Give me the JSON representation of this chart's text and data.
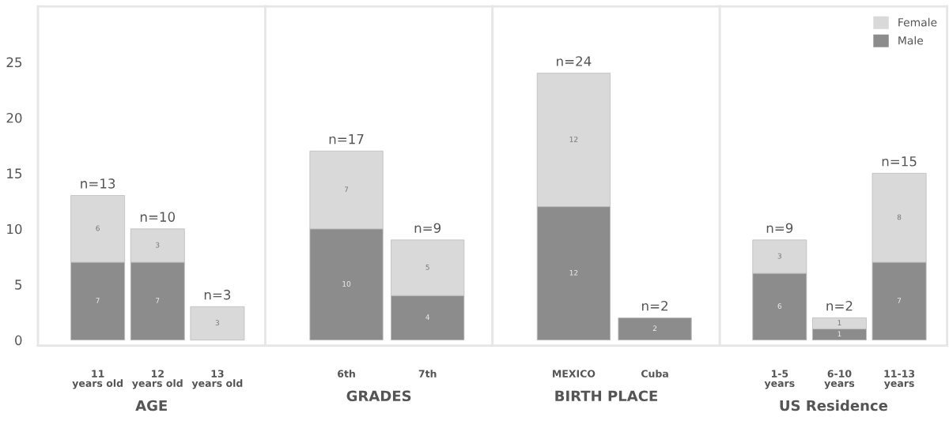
{
  "chart_data": [
    {
      "type": "bar",
      "stacked": true,
      "xlabel": "AGE",
      "categories": [
        "11\nyears old",
        "12\nyears old",
        "13\nyears old"
      ],
      "ylim": [
        -0.5,
        30
      ],
      "yticks": [
        0,
        5,
        10,
        15,
        20,
        25
      ],
      "data_labels": true,
      "totals": [
        "n=13",
        "n=10",
        "n=3"
      ],
      "series": [
        {
          "color": "#8c8c8c",
          "values": [
            7,
            7,
            null
          ]
        },
        {
          "color": "#d9d9d9",
          "values": [
            6,
            3,
            3
          ]
        }
      ]
    },
    {
      "type": "bar",
      "stacked": true,
      "xlabel": "GRADES",
      "categories": [
        "6th",
        "7th"
      ],
      "ylim": [
        -0.5,
        30
      ],
      "tick_labels": "x",
      "data_labels": true,
      "totals": [
        "n=17",
        "n=9"
      ],
      "series": [
        {
          "color": "#8c8c8c",
          "values": [
            10,
            4
          ]
        },
        {
          "color": "#d9d9d9",
          "values": [
            7,
            5
          ]
        }
      ]
    },
    {
      "type": "bar",
      "stacked": true,
      "xlabel": "BIRTH PLACE",
      "categories": [
        "MEXICO",
        "Cuba"
      ],
      "ylim": [
        -0.5,
        30
      ],
      "tick_labels": "x",
      "data_labels": true,
      "totals": [
        "n=24",
        "n=2"
      ],
      "series": [
        {
          "color": "#8c8c8c",
          "values": [
            12,
            2
          ]
        },
        {
          "color": "#d9d9d9",
          "values": [
            12,
            null
          ]
        }
      ]
    },
    {
      "type": "bar",
      "stacked": true,
      "xlabel": "US Residence",
      "categories": [
        "1-5\nyears",
        "6-10\nyears",
        "11-13\nyears"
      ],
      "ylim": [
        -0.5,
        30
      ],
      "tick_labels": "x",
      "data_labels": true,
      "totals": [
        "n=9",
        "n=2",
        "n=15"
      ],
      "legend": "top right",
      "series": [
        {
          "name": "Male",
          "color": "#8c8c8c",
          "values": [
            6,
            1,
            7
          ]
        },
        {
          "name": "Female",
          "color": "#d9d9d9",
          "values": [
            3,
            1,
            8
          ]
        }
      ]
    }
  ]
}
